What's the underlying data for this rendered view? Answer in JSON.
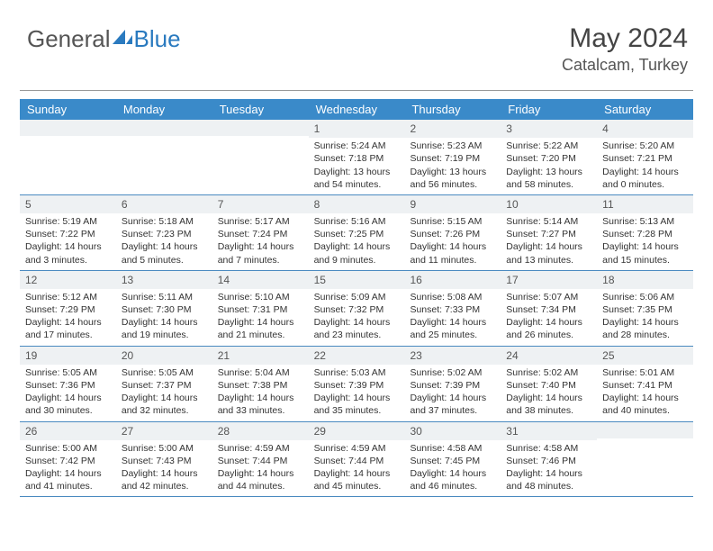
{
  "logo": {
    "text1": "General",
    "text2": "Blue"
  },
  "header": {
    "title": "May 2024",
    "location": "Catalcam, Turkey"
  },
  "colors": {
    "header_bg": "#3a8ac9",
    "header_text": "#ffffff",
    "daynum_bg": "#eef1f3",
    "border": "#4a8ac0",
    "logo_blue": "#2a7abf"
  },
  "days": [
    "Sunday",
    "Monday",
    "Tuesday",
    "Wednesday",
    "Thursday",
    "Friday",
    "Saturday"
  ],
  "weeks": [
    [
      {
        "n": "",
        "sr": "",
        "ss": "",
        "dl": ""
      },
      {
        "n": "",
        "sr": "",
        "ss": "",
        "dl": ""
      },
      {
        "n": "",
        "sr": "",
        "ss": "",
        "dl": ""
      },
      {
        "n": "1",
        "sr": "Sunrise: 5:24 AM",
        "ss": "Sunset: 7:18 PM",
        "dl": "Daylight: 13 hours and 54 minutes."
      },
      {
        "n": "2",
        "sr": "Sunrise: 5:23 AM",
        "ss": "Sunset: 7:19 PM",
        "dl": "Daylight: 13 hours and 56 minutes."
      },
      {
        "n": "3",
        "sr": "Sunrise: 5:22 AM",
        "ss": "Sunset: 7:20 PM",
        "dl": "Daylight: 13 hours and 58 minutes."
      },
      {
        "n": "4",
        "sr": "Sunrise: 5:20 AM",
        "ss": "Sunset: 7:21 PM",
        "dl": "Daylight: 14 hours and 0 minutes."
      }
    ],
    [
      {
        "n": "5",
        "sr": "Sunrise: 5:19 AM",
        "ss": "Sunset: 7:22 PM",
        "dl": "Daylight: 14 hours and 3 minutes."
      },
      {
        "n": "6",
        "sr": "Sunrise: 5:18 AM",
        "ss": "Sunset: 7:23 PM",
        "dl": "Daylight: 14 hours and 5 minutes."
      },
      {
        "n": "7",
        "sr": "Sunrise: 5:17 AM",
        "ss": "Sunset: 7:24 PM",
        "dl": "Daylight: 14 hours and 7 minutes."
      },
      {
        "n": "8",
        "sr": "Sunrise: 5:16 AM",
        "ss": "Sunset: 7:25 PM",
        "dl": "Daylight: 14 hours and 9 minutes."
      },
      {
        "n": "9",
        "sr": "Sunrise: 5:15 AM",
        "ss": "Sunset: 7:26 PM",
        "dl": "Daylight: 14 hours and 11 minutes."
      },
      {
        "n": "10",
        "sr": "Sunrise: 5:14 AM",
        "ss": "Sunset: 7:27 PM",
        "dl": "Daylight: 14 hours and 13 minutes."
      },
      {
        "n": "11",
        "sr": "Sunrise: 5:13 AM",
        "ss": "Sunset: 7:28 PM",
        "dl": "Daylight: 14 hours and 15 minutes."
      }
    ],
    [
      {
        "n": "12",
        "sr": "Sunrise: 5:12 AM",
        "ss": "Sunset: 7:29 PM",
        "dl": "Daylight: 14 hours and 17 minutes."
      },
      {
        "n": "13",
        "sr": "Sunrise: 5:11 AM",
        "ss": "Sunset: 7:30 PM",
        "dl": "Daylight: 14 hours and 19 minutes."
      },
      {
        "n": "14",
        "sr": "Sunrise: 5:10 AM",
        "ss": "Sunset: 7:31 PM",
        "dl": "Daylight: 14 hours and 21 minutes."
      },
      {
        "n": "15",
        "sr": "Sunrise: 5:09 AM",
        "ss": "Sunset: 7:32 PM",
        "dl": "Daylight: 14 hours and 23 minutes."
      },
      {
        "n": "16",
        "sr": "Sunrise: 5:08 AM",
        "ss": "Sunset: 7:33 PM",
        "dl": "Daylight: 14 hours and 25 minutes."
      },
      {
        "n": "17",
        "sr": "Sunrise: 5:07 AM",
        "ss": "Sunset: 7:34 PM",
        "dl": "Daylight: 14 hours and 26 minutes."
      },
      {
        "n": "18",
        "sr": "Sunrise: 5:06 AM",
        "ss": "Sunset: 7:35 PM",
        "dl": "Daylight: 14 hours and 28 minutes."
      }
    ],
    [
      {
        "n": "19",
        "sr": "Sunrise: 5:05 AM",
        "ss": "Sunset: 7:36 PM",
        "dl": "Daylight: 14 hours and 30 minutes."
      },
      {
        "n": "20",
        "sr": "Sunrise: 5:05 AM",
        "ss": "Sunset: 7:37 PM",
        "dl": "Daylight: 14 hours and 32 minutes."
      },
      {
        "n": "21",
        "sr": "Sunrise: 5:04 AM",
        "ss": "Sunset: 7:38 PM",
        "dl": "Daylight: 14 hours and 33 minutes."
      },
      {
        "n": "22",
        "sr": "Sunrise: 5:03 AM",
        "ss": "Sunset: 7:39 PM",
        "dl": "Daylight: 14 hours and 35 minutes."
      },
      {
        "n": "23",
        "sr": "Sunrise: 5:02 AM",
        "ss": "Sunset: 7:39 PM",
        "dl": "Daylight: 14 hours and 37 minutes."
      },
      {
        "n": "24",
        "sr": "Sunrise: 5:02 AM",
        "ss": "Sunset: 7:40 PM",
        "dl": "Daylight: 14 hours and 38 minutes."
      },
      {
        "n": "25",
        "sr": "Sunrise: 5:01 AM",
        "ss": "Sunset: 7:41 PM",
        "dl": "Daylight: 14 hours and 40 minutes."
      }
    ],
    [
      {
        "n": "26",
        "sr": "Sunrise: 5:00 AM",
        "ss": "Sunset: 7:42 PM",
        "dl": "Daylight: 14 hours and 41 minutes."
      },
      {
        "n": "27",
        "sr": "Sunrise: 5:00 AM",
        "ss": "Sunset: 7:43 PM",
        "dl": "Daylight: 14 hours and 42 minutes."
      },
      {
        "n": "28",
        "sr": "Sunrise: 4:59 AM",
        "ss": "Sunset: 7:44 PM",
        "dl": "Daylight: 14 hours and 44 minutes."
      },
      {
        "n": "29",
        "sr": "Sunrise: 4:59 AM",
        "ss": "Sunset: 7:44 PM",
        "dl": "Daylight: 14 hours and 45 minutes."
      },
      {
        "n": "30",
        "sr": "Sunrise: 4:58 AM",
        "ss": "Sunset: 7:45 PM",
        "dl": "Daylight: 14 hours and 46 minutes."
      },
      {
        "n": "31",
        "sr": "Sunrise: 4:58 AM",
        "ss": "Sunset: 7:46 PM",
        "dl": "Daylight: 14 hours and 48 minutes."
      },
      {
        "n": "",
        "sr": "",
        "ss": "",
        "dl": ""
      }
    ]
  ]
}
